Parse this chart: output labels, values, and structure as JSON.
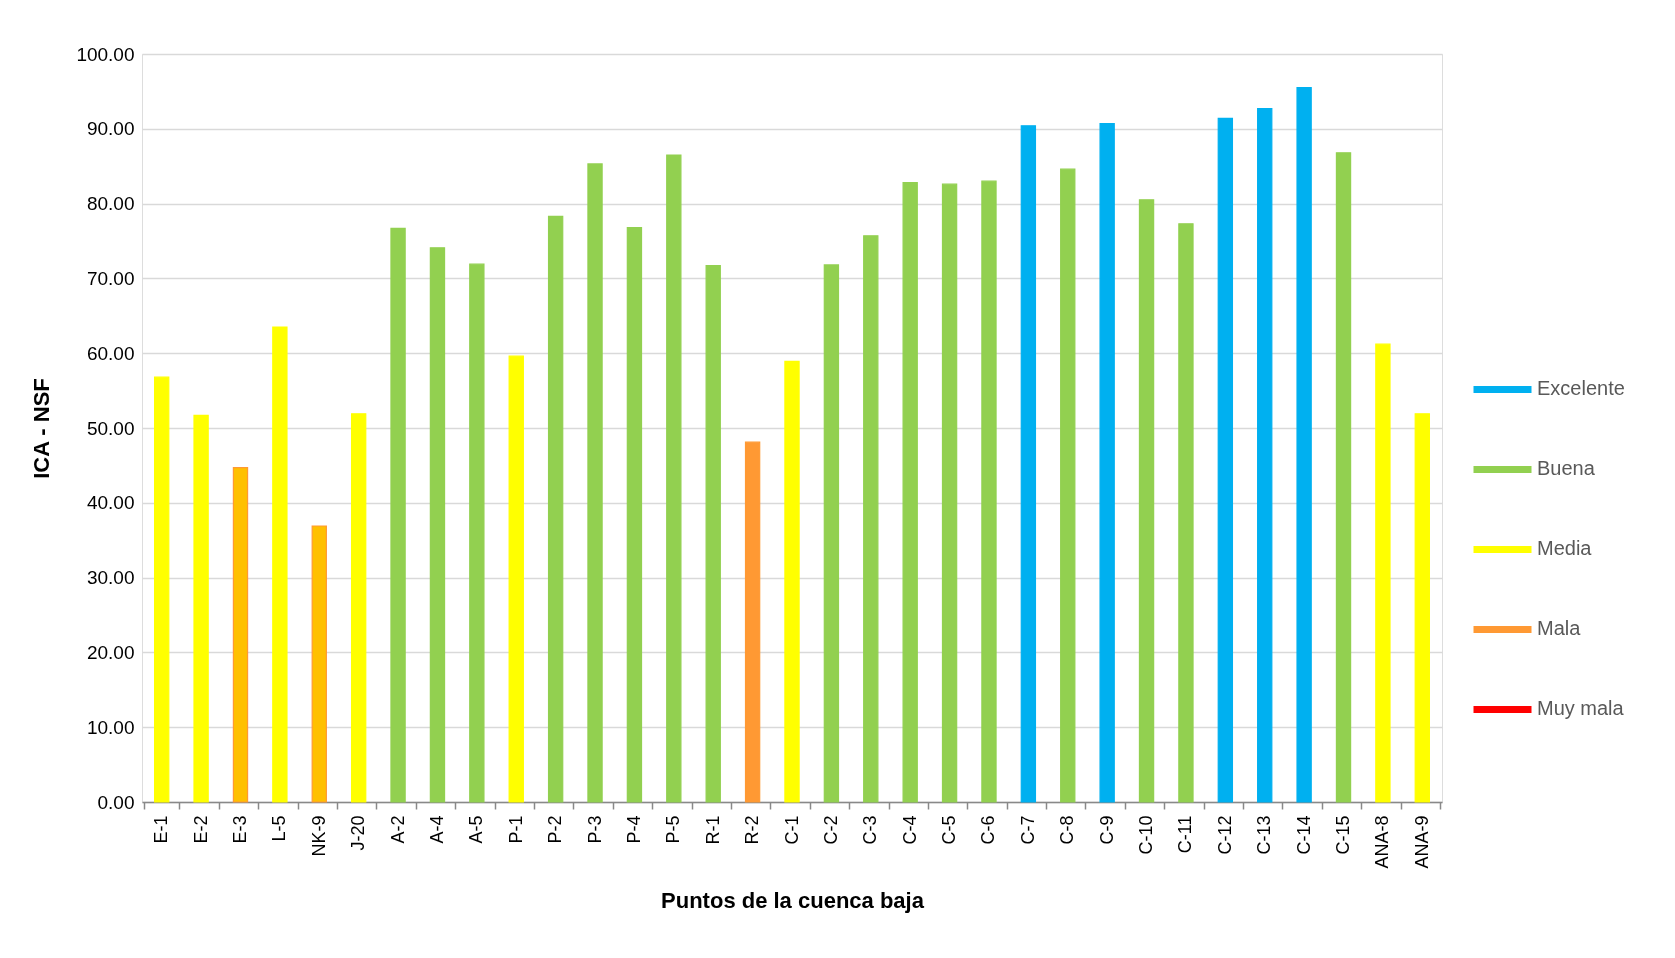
{
  "chart_data": {
    "type": "bar",
    "xlabel": "Puntos de la cuenca baja",
    "ylabel": "ICA - NSF",
    "categories": [
      "E-1",
      "E-2",
      "E-3",
      "L-5",
      "NK-9",
      "J-20",
      "A-2",
      "A-4",
      "A-5",
      "P-1",
      "P-2",
      "P-3",
      "P-4",
      "P-5",
      "R-1",
      "R-2",
      "C-1",
      "C-2",
      "C-3",
      "C-4",
      "C-5",
      "C-6",
      "C-7",
      "C-8",
      "C-9",
      "C-10",
      "C-11",
      "C-12",
      "C-13",
      "C-14",
      "C-15",
      "ANA-8",
      "ANA-9"
    ],
    "series": [
      {
        "name": "Excelente",
        "color": "#00b0f0",
        "values": [
          null,
          null,
          null,
          null,
          null,
          null,
          null,
          null,
          null,
          null,
          null,
          null,
          null,
          null,
          null,
          null,
          null,
          null,
          null,
          null,
          null,
          null,
          90.4,
          null,
          90.7,
          null,
          null,
          91.4,
          92.7,
          95.5,
          null,
          null,
          null
        ]
      },
      {
        "name": "Buena",
        "color": "#92d050",
        "values": [
          null,
          null,
          null,
          null,
          null,
          null,
          76.7,
          74.1,
          71.9,
          null,
          78.3,
          85.3,
          76.8,
          86.5,
          71.7,
          null,
          null,
          71.8,
          75.7,
          82.8,
          82.6,
          83.0,
          null,
          84.6,
          null,
          80.5,
          77.3,
          null,
          null,
          null,
          86.8,
          null,
          null
        ]
      },
      {
        "name": "Media",
        "color": "#ffff00",
        "values": [
          56.8,
          51.7,
          null,
          63.5,
          null,
          51.9,
          null,
          null,
          null,
          59.6,
          null,
          null,
          null,
          null,
          null,
          null,
          58.9,
          null,
          null,
          null,
          null,
          null,
          null,
          null,
          null,
          null,
          null,
          null,
          null,
          null,
          null,
          61.2,
          51.9
        ]
      },
      {
        "name": "Mala",
        "color": "#ff9933",
        "values": [
          null,
          null,
          44.7,
          null,
          36.9,
          null,
          null,
          null,
          null,
          null,
          null,
          null,
          null,
          null,
          null,
          48.1,
          null,
          null,
          null,
          null,
          null,
          null,
          null,
          null,
          null,
          null,
          null,
          null,
          null,
          null,
          null,
          null,
          null
        ],
        "colors": [
          null,
          null,
          "#ffc000",
          null,
          "#ffc000",
          null,
          null,
          null,
          null,
          null,
          null,
          null,
          null,
          null,
          null,
          "#ff9933",
          null,
          null,
          null,
          null,
          null,
          null,
          null,
          null,
          null,
          null,
          null,
          null,
          null,
          null,
          null,
          null,
          null
        ]
      },
      {
        "name": "Muy mala",
        "color": "#ff0000",
        "values": [
          null,
          null,
          null,
          null,
          null,
          null,
          null,
          null,
          null,
          null,
          null,
          null,
          null,
          null,
          null,
          null,
          null,
          null,
          null,
          null,
          null,
          null,
          null,
          null,
          null,
          null,
          null,
          null,
          null,
          null,
          null,
          null,
          null
        ]
      }
    ],
    "ylim": [
      0,
      100
    ],
    "yticks": [
      {
        "value": 0,
        "label": "0.00"
      },
      {
        "value": 10,
        "label": "10.00"
      },
      {
        "value": 20,
        "label": "20.00"
      },
      {
        "value": 30,
        "label": "30.00"
      },
      {
        "value": 40,
        "label": "40.00"
      },
      {
        "value": 50,
        "label": "50.00"
      },
      {
        "value": 60,
        "label": "60.00"
      },
      {
        "value": 70,
        "label": "70.00"
      },
      {
        "value": 80,
        "label": "80.00"
      },
      {
        "value": 90,
        "label": "90.00"
      },
      {
        "value": 100,
        "label": "100.00"
      }
    ],
    "grid": "y",
    "legend": "right"
  }
}
